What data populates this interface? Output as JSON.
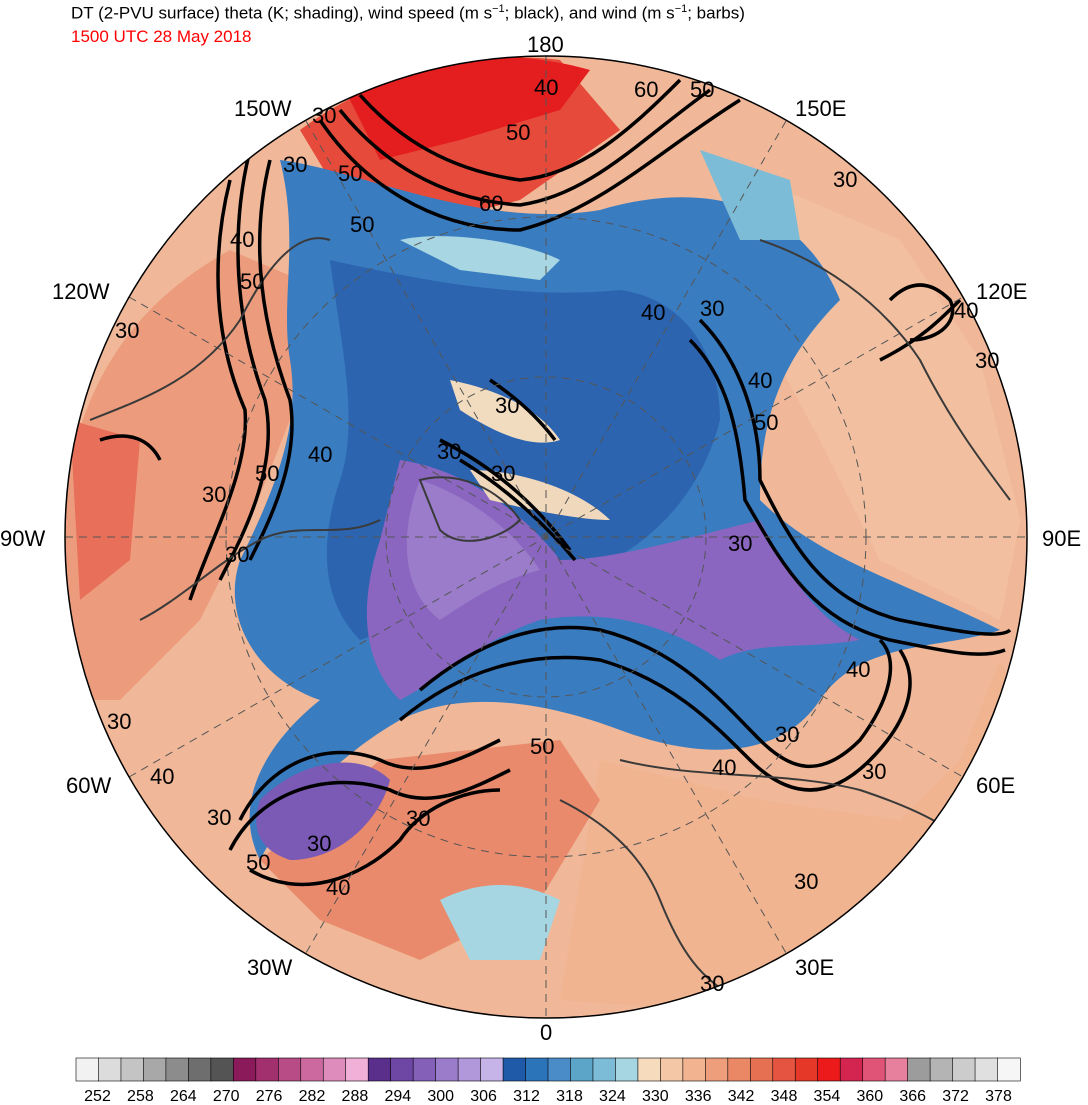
{
  "title": {
    "part1": "DT (2-PVU surface) theta (K; shading), wind speed (m s",
    "sup1": "−1",
    "part2": "; black), and wind (m s",
    "sup2": "−1",
    "part3": "; barbs)"
  },
  "valid_time": "1500 UTC 28 May 2018",
  "longitude_labels": {
    "l180": "180",
    "l150w": "150W",
    "l150e": "150E",
    "l120w": "120W",
    "l120e": "120E",
    "l90w": "90W",
    "l90e": "90E",
    "l60w": "60W",
    "l60e": "60E",
    "l30w": "30W",
    "l30e": "30E",
    "l0": "0"
  },
  "contour_labels": [
    "30",
    "40",
    "50",
    "60",
    "50",
    "50",
    "60",
    "50",
    "30",
    "40",
    "50",
    "30",
    "30",
    "40",
    "30",
    "30",
    "40",
    "50",
    "30",
    "30",
    "30",
    "50",
    "30",
    "30",
    "40",
    "50",
    "30",
    "40",
    "30",
    "40",
    "40",
    "30",
    "50",
    "30",
    "40",
    "30",
    "30",
    "40",
    "30",
    "30",
    "30"
  ],
  "colorbar": {
    "tick_labels": [
      "252",
      "258",
      "264",
      "270",
      "276",
      "282",
      "288",
      "294",
      "300",
      "306",
      "312",
      "318",
      "324",
      "330",
      "336",
      "342",
      "348",
      "354",
      "360",
      "366",
      "372",
      "378"
    ],
    "colors": [
      "#f2f2f2",
      "#dcdcdc",
      "#c4c4c4",
      "#a8a8a8",
      "#8c8c8c",
      "#6e6e6e",
      "#545454",
      "#8a1a5a",
      "#a2306e",
      "#b84c86",
      "#cc6aa0",
      "#de8cbc",
      "#f0b0d8",
      "#5a2f8c",
      "#6e46a4",
      "#8460b8",
      "#9a7cca",
      "#b098da",
      "#c6b4e8",
      "#1e5aa8",
      "#2c74ba",
      "#4a8cc8",
      "#5ca4c8",
      "#7cbcd6",
      "#a6d6e2",
      "#f6dcbc",
      "#f4c8a6",
      "#f2b490",
      "#ee9e7a",
      "#ea8866",
      "#e67052",
      "#e45440",
      "#e63828",
      "#ec1a1a",
      "#d42450",
      "#e05478",
      "#e6809c",
      "#9c9c9c",
      "#b4b4b4",
      "#cccccc",
      "#e0e0e0",
      "#f6f6f6"
    ]
  }
}
